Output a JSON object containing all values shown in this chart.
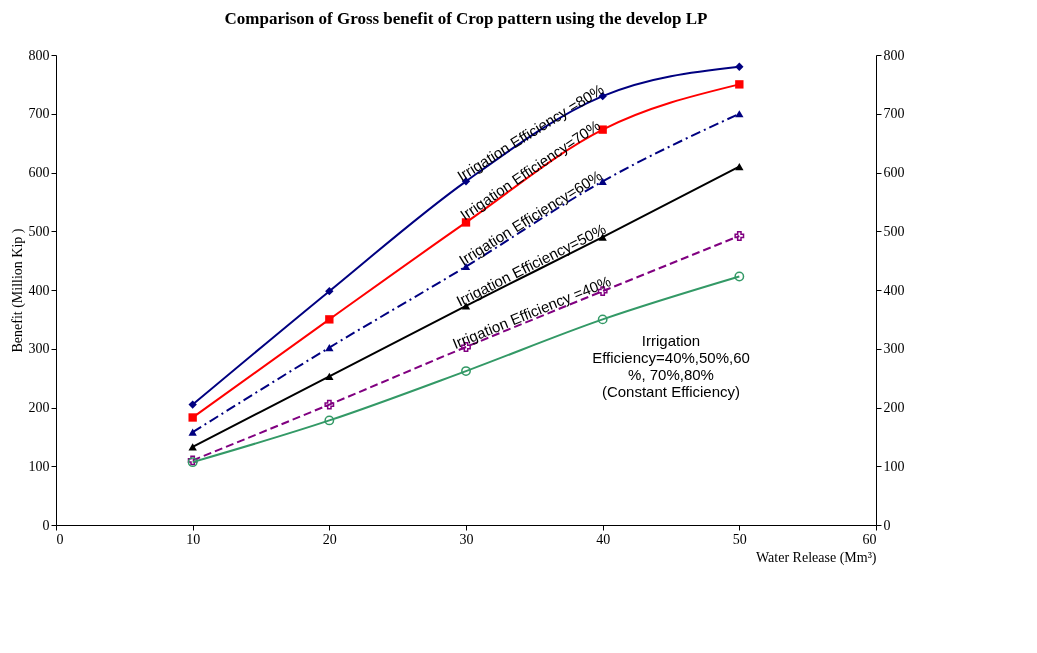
{
  "chart_data": {
    "type": "line",
    "title": "Comparison of Gross benefit of Crop pattern using the develop LP",
    "xlabel": "Water Release (Mm³)",
    "ylabel": "Benefit (Million Kip )",
    "x": [
      10,
      20,
      30,
      40,
      50
    ],
    "series": [
      {
        "name": "Irrigation Efficiency =80%",
        "color": "#000080",
        "marker": "diamond",
        "line_style": "solid",
        "values": [
          205,
          398,
          585,
          730,
          780
        ]
      },
      {
        "name": "Irrigation Efficiency=70%",
        "color": "#ff0000",
        "marker": "square",
        "line_style": "solid",
        "values": [
          183,
          350,
          515,
          673,
          750
        ]
      },
      {
        "name": "Irrigation Efficiency=60%",
        "color": "#000080",
        "marker": "triangle",
        "line_style": "dashdot",
        "values": [
          158,
          302,
          440,
          585,
          700
        ]
      },
      {
        "name": "Irrigation Efficiency=50%",
        "color": "#000000",
        "marker": "triangle",
        "line_style": "solid",
        "values": [
          133,
          253,
          373,
          490,
          610
        ]
      },
      {
        "name": "Irrigation Efficiency =40%",
        "color": "#800080",
        "marker": "cross",
        "line_style": "dashed",
        "values": [
          110,
          205,
          303,
          398,
          492
        ]
      },
      {
        "name": "Irrigation\nEfficiency=40%,50%,60\n%, 70%,80%\n(Constant Efficiency)",
        "color": "#339966",
        "marker": "circle",
        "line_style": "solid",
        "values": [
          107,
          178,
          262,
          350,
          423
        ]
      }
    ],
    "xlim": [
      0,
      60
    ],
    "xticks": [
      0,
      10,
      20,
      30,
      40,
      50,
      60
    ],
    "ylim": [
      0,
      800
    ],
    "yticks": [
      0,
      100,
      200,
      300,
      400,
      500,
      600,
      700,
      800
    ],
    "y2lim": [
      0,
      800
    ],
    "y2ticks": [
      0,
      100,
      200,
      300,
      400,
      500,
      600,
      700,
      800
    ],
    "grid": false,
    "legend": false
  }
}
